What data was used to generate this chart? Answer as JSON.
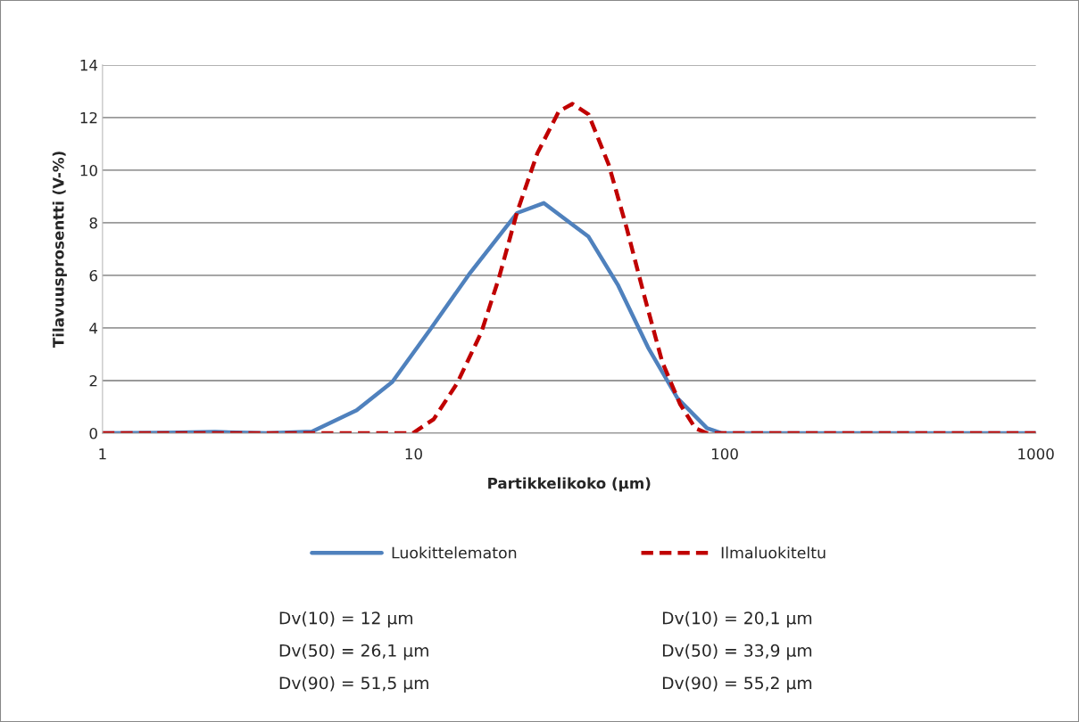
{
  "chart_data": {
    "type": "line",
    "xlabel": "Partikkelikoko (µm)",
    "ylabel": "Tilavuusprosentti (V-%)",
    "log": "x",
    "xlim": [
      1,
      1000
    ],
    "xticks": [
      1,
      10,
      100,
      1000
    ],
    "ylim": [
      0,
      14
    ],
    "yticks": [
      0,
      2,
      4,
      6,
      8,
      10,
      12,
      14
    ],
    "grid": "y",
    "legend": "bottom",
    "series": [
      {
        "name": "Luokittelematon",
        "color": "#4f81bd",
        "line_style": "solid",
        "x": [
          1,
          1.6,
          2.3,
          3.39,
          4.71,
          6.56,
          8.54,
          11.3,
          15.2,
          21.5,
          26.2,
          36.5,
          45.3,
          56.7,
          70.5,
          87.7,
          98,
          200,
          500,
          1000
        ],
        "values": [
          0,
          0.02,
          0.05,
          0,
          0.06,
          0.87,
          1.95,
          3.94,
          6.1,
          8.37,
          8.75,
          7.47,
          5.65,
          3.26,
          1.33,
          0.19,
          0,
          0,
          0,
          0
        ]
      },
      {
        "name": "Ilmaluokiteltu",
        "color": "#c00000",
        "line_style": "dashed",
        "x": [
          1,
          5,
          9.94,
          11.6,
          13.8,
          16.5,
          18.8,
          21.5,
          25.0,
          29.3,
          32.4,
          36.5,
          42.4,
          48.4,
          55.2,
          63.0,
          71.9,
          80.4,
          87.7,
          200,
          500,
          1000
        ],
        "values": [
          0,
          0,
          0,
          0.53,
          1.9,
          3.83,
          5.9,
          8.4,
          10.65,
          12.24,
          12.52,
          12.12,
          10.2,
          7.8,
          5.2,
          2.7,
          1.1,
          0.19,
          0,
          0,
          0,
          0
        ]
      }
    ],
    "annotations": [
      "Dv(10) = 12 µm",
      "Dv(50) = 26,1 µm",
      "Dv(90) = 51,5 µm",
      "Dv(10) = 20,1 µm",
      "Dv(50) = 33,9 µm",
      "Dv(90) = 55,2 µm"
    ]
  }
}
